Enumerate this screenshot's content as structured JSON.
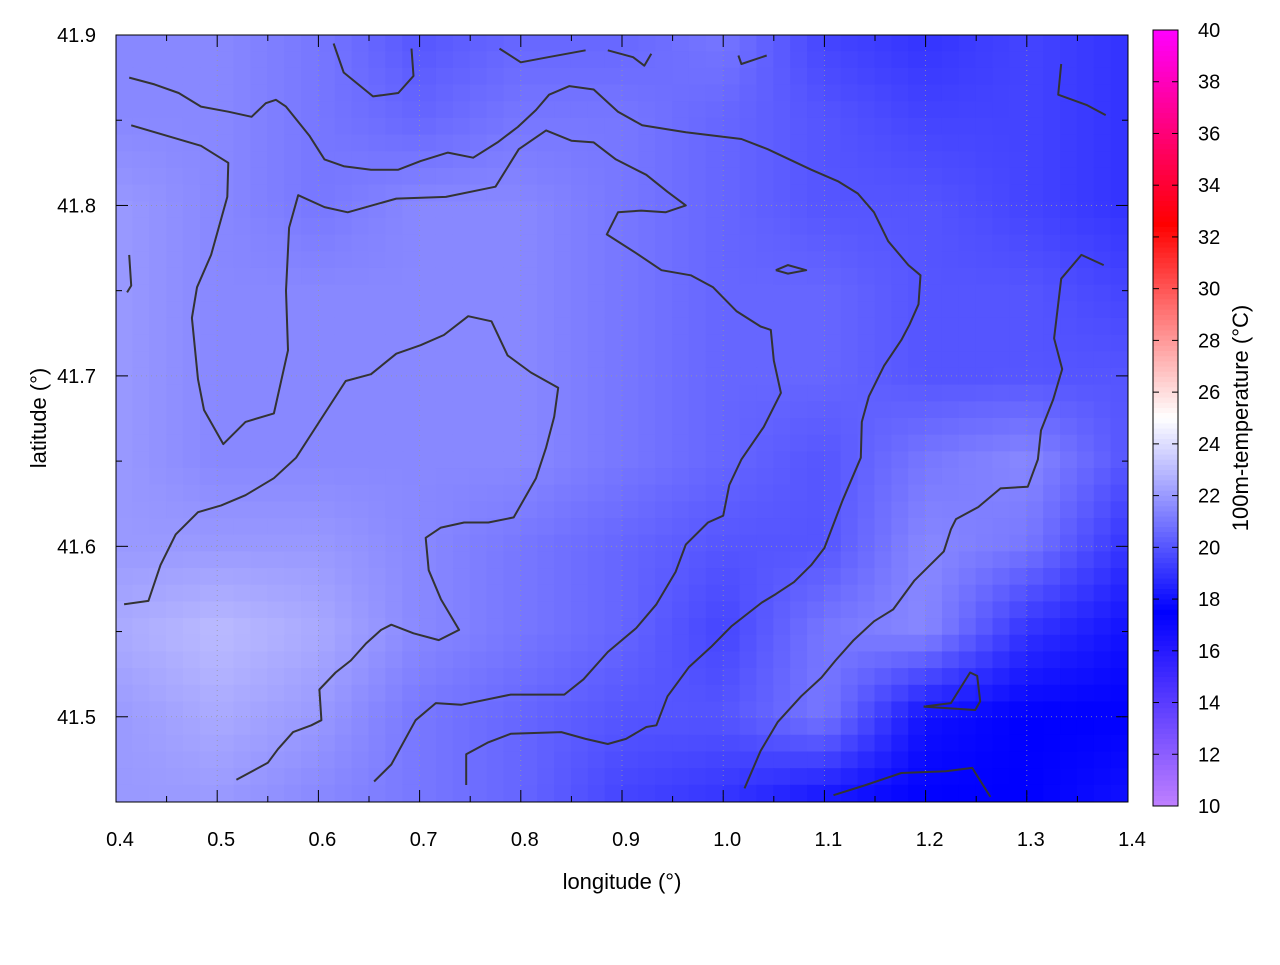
{
  "chart_data": {
    "type": "heatmap",
    "xlabel": "longitude (°)",
    "ylabel": "latitude (°)",
    "xlim": [
      0.4,
      1.4
    ],
    "ylim": [
      41.45,
      41.9
    ],
    "xticks": [
      "0.4",
      "0.5",
      "0.6",
      "0.7",
      "0.8",
      "0.9",
      "1.0",
      "1.1",
      "1.2",
      "1.3",
      "1.4"
    ],
    "yticks": [
      "41.5",
      "41.6",
      "41.7",
      "41.8",
      "41.9"
    ],
    "grid": true,
    "colorbar": {
      "label": "100m-temperature (°C)",
      "range": [
        10,
        40
      ],
      "ticks": [
        "10",
        "12",
        "14",
        "16",
        "18",
        "20",
        "22",
        "24",
        "26",
        "28",
        "30",
        "32",
        "34",
        "36",
        "38",
        "40"
      ],
      "colormap": [
        {
          "value": 10,
          "color": "#c080ff"
        },
        {
          "value": 17.5,
          "color": "#0000ff"
        },
        {
          "value": 25,
          "color": "#ffffff"
        },
        {
          "value": 32.5,
          "color": "#ff0000"
        },
        {
          "value": 40,
          "color": "#ff00ff"
        }
      ]
    },
    "grid_lon": [
      0.4,
      0.5,
      0.6,
      0.7,
      0.8,
      0.9,
      1.0,
      1.1,
      1.2,
      1.3,
      1.4
    ],
    "grid_lat": [
      41.9,
      41.85,
      41.8,
      41.75,
      41.7,
      41.65,
      41.6,
      41.55,
      41.5,
      41.45
    ],
    "temperature": [
      [
        21.5,
        21.5,
        21,
        20,
        20.5,
        20.5,
        21,
        19.5,
        19,
        19.5,
        19
      ],
      [
        21.5,
        21.5,
        21,
        20.5,
        21,
        21,
        20.5,
        20,
        19.5,
        19.5,
        19
      ],
      [
        22,
        21.5,
        21,
        21.5,
        21.5,
        21,
        20.5,
        20,
        20,
        19.5,
        19
      ],
      [
        22,
        21.5,
        21.5,
        21.5,
        21.5,
        21,
        20.5,
        20.5,
        20,
        20,
        19.5
      ],
      [
        22,
        21.5,
        21.5,
        21.5,
        21.5,
        21,
        20.5,
        20.5,
        20,
        20,
        20
      ],
      [
        22,
        21.5,
        21.5,
        21.5,
        21.5,
        21,
        20.5,
        20,
        21,
        21.5,
        20
      ],
      [
        22,
        22,
        22,
        21.5,
        21,
        20.5,
        20,
        20,
        21.5,
        21,
        19
      ],
      [
        22.5,
        23,
        22.5,
        21.5,
        21,
        20.5,
        19.5,
        21,
        21.5,
        19,
        18
      ],
      [
        22,
        22.5,
        22,
        21,
        20.5,
        20,
        20,
        21,
        18,
        17.5,
        17.5
      ],
      [
        22,
        22,
        21.5,
        21,
        20.5,
        19.5,
        19,
        18,
        17.5,
        17.5,
        18
      ]
    ],
    "contour_color": "#333333",
    "contours": [
      [
        [
          0.415,
          41.847
        ],
        [
          0.484,
          41.835
        ],
        [
          0.511,
          41.825
        ],
        [
          0.51,
          41.805
        ],
        [
          0.494,
          41.771
        ],
        [
          0.48,
          41.752
        ],
        [
          0.475,
          41.734
        ],
        [
          0.481,
          41.698
        ],
        [
          0.487,
          41.68
        ],
        [
          0.506,
          41.66
        ],
        [
          0.528,
          41.673
        ],
        [
          0.556,
          41.678
        ],
        [
          0.57,
          41.715
        ],
        [
          0.568,
          41.75
        ],
        [
          0.571,
          41.787
        ],
        [
          0.58,
          41.806
        ],
        [
          0.606,
          41.799
        ],
        [
          0.629,
          41.796
        ],
        [
          0.677,
          41.804
        ],
        [
          0.726,
          41.805
        ],
        [
          0.775,
          41.811
        ],
        [
          0.798,
          41.833
        ],
        [
          0.825,
          41.844
        ],
        [
          0.85,
          41.838
        ],
        [
          0.872,
          41.837
        ],
        [
          0.894,
          41.827
        ],
        [
          0.924,
          41.818
        ],
        [
          0.945,
          41.808
        ],
        [
          0.963,
          41.8
        ],
        [
          0.943,
          41.796
        ],
        [
          0.919,
          41.797
        ],
        [
          0.896,
          41.796
        ],
        [
          0.885,
          41.783
        ],
        [
          0.914,
          41.772
        ],
        [
          0.939,
          41.762
        ],
        [
          0.968,
          41.759
        ],
        [
          0.99,
          41.752
        ],
        [
          1.013,
          41.738
        ],
        [
          1.037,
          41.729
        ],
        [
          1.047,
          41.727
        ],
        [
          1.05,
          41.709
        ],
        [
          1.057,
          41.69
        ],
        [
          1.04,
          41.67
        ],
        [
          1.018,
          41.651
        ],
        [
          1.006,
          41.636
        ],
        [
          1.0,
          41.618
        ],
        [
          0.985,
          41.614
        ],
        [
          0.963,
          41.601
        ],
        [
          0.953,
          41.585
        ],
        [
          0.934,
          41.566
        ],
        [
          0.914,
          41.552
        ],
        [
          0.886,
          41.538
        ],
        [
          0.862,
          41.522
        ],
        [
          0.843,
          41.513
        ],
        [
          0.79,
          41.513
        ],
        [
          0.741,
          41.507
        ],
        [
          0.716,
          41.508
        ],
        [
          0.696,
          41.498
        ],
        [
          0.672,
          41.472
        ],
        [
          0.655,
          41.462
        ]
      ],
      [
        [
          0.408,
          41.566
        ],
        [
          0.432,
          41.568
        ],
        [
          0.444,
          41.589
        ],
        [
          0.459,
          41.607
        ],
        [
          0.481,
          41.62
        ],
        [
          0.504,
          41.624
        ],
        [
          0.528,
          41.63
        ],
        [
          0.556,
          41.64
        ],
        [
          0.578,
          41.652
        ],
        [
          0.603,
          41.675
        ],
        [
          0.627,
          41.697
        ],
        [
          0.652,
          41.701
        ],
        [
          0.677,
          41.713
        ],
        [
          0.701,
          41.718
        ],
        [
          0.724,
          41.724
        ],
        [
          0.748,
          41.735
        ],
        [
          0.771,
          41.732
        ],
        [
          0.787,
          41.712
        ],
        [
          0.81,
          41.702
        ],
        [
          0.837,
          41.693
        ],
        [
          0.833,
          41.676
        ],
        [
          0.825,
          41.658
        ],
        [
          0.815,
          41.64
        ],
        [
          0.793,
          41.617
        ],
        [
          0.768,
          41.614
        ],
        [
          0.744,
          41.614
        ],
        [
          0.721,
          41.611
        ],
        [
          0.706,
          41.605
        ],
        [
          0.709,
          41.586
        ],
        [
          0.721,
          41.569
        ],
        [
          0.739,
          41.551
        ],
        [
          0.719,
          41.545
        ],
        [
          0.694,
          41.549
        ],
        [
          0.672,
          41.554
        ],
        [
          0.662,
          41.551
        ],
        [
          0.647,
          41.543
        ],
        [
          0.632,
          41.533
        ],
        [
          0.617,
          41.526
        ],
        [
          0.601,
          41.516
        ],
        [
          0.603,
          41.498
        ],
        [
          0.593,
          41.495
        ],
        [
          0.575,
          41.491
        ],
        [
          0.56,
          41.481
        ],
        [
          0.55,
          41.473
        ],
        [
          0.519,
          41.463
        ]
      ],
      [
        [
          0.413,
          41.875
        ],
        [
          0.438,
          41.871
        ],
        [
          0.462,
          41.866
        ],
        [
          0.484,
          41.858
        ],
        [
          0.511,
          41.855
        ],
        [
          0.534,
          41.852
        ],
        [
          0.548,
          41.86
        ],
        [
          0.558,
          41.862
        ],
        [
          0.568,
          41.858
        ],
        [
          0.591,
          41.841
        ],
        [
          0.606,
          41.827
        ],
        [
          0.625,
          41.823
        ],
        [
          0.652,
          41.821
        ],
        [
          0.679,
          41.821
        ],
        [
          0.701,
          41.826
        ],
        [
          0.728,
          41.831
        ],
        [
          0.753,
          41.828
        ],
        [
          0.777,
          41.837
        ],
        [
          0.797,
          41.846
        ],
        [
          0.815,
          41.856
        ],
        [
          0.828,
          41.865
        ],
        [
          0.848,
          41.87
        ],
        [
          0.872,
          41.868
        ],
        [
          0.896,
          41.855
        ],
        [
          0.92,
          41.847
        ],
        [
          0.963,
          41.843
        ],
        [
          1.018,
          41.839
        ],
        [
          1.044,
          41.833
        ],
        [
          1.087,
          41.821
        ],
        [
          1.114,
          41.814
        ],
        [
          1.133,
          41.807
        ],
        [
          1.149,
          41.796
        ],
        [
          1.163,
          41.779
        ],
        [
          1.183,
          41.765
        ],
        [
          1.195,
          41.759
        ],
        [
          1.193,
          41.742
        ],
        [
          1.184,
          41.73
        ],
        [
          1.176,
          41.721
        ],
        [
          1.159,
          41.706
        ],
        [
          1.144,
          41.688
        ],
        [
          1.137,
          41.673
        ],
        [
          1.136,
          41.652
        ],
        [
          1.118,
          41.627
        ],
        [
          1.1,
          41.599
        ],
        [
          1.087,
          41.589
        ],
        [
          1.07,
          41.579
        ],
        [
          1.052,
          41.572
        ],
        [
          1.038,
          41.567
        ],
        [
          1.008,
          41.553
        ],
        [
          0.988,
          41.541
        ],
        [
          0.966,
          41.529
        ],
        [
          0.945,
          41.512
        ],
        [
          0.934,
          41.495
        ],
        [
          0.924,
          41.494
        ],
        [
          0.904,
          41.487
        ],
        [
          0.886,
          41.484
        ],
        [
          0.864,
          41.487
        ],
        [
          0.84,
          41.491
        ],
        [
          0.79,
          41.49
        ],
        [
          0.768,
          41.485
        ],
        [
          0.746,
          41.478
        ],
        [
          0.746,
          41.46
        ]
      ],
      [
        [
          1.376,
          41.765
        ],
        [
          1.354,
          41.771
        ],
        [
          1.334,
          41.757
        ],
        [
          1.327,
          41.722
        ],
        [
          1.335,
          41.704
        ],
        [
          1.326,
          41.686
        ],
        [
          1.314,
          41.668
        ],
        [
          1.311,
          41.651
        ],
        [
          1.301,
          41.635
        ],
        [
          1.274,
          41.634
        ],
        [
          1.252,
          41.623
        ],
        [
          1.23,
          41.616
        ],
        [
          1.225,
          41.61
        ],
        [
          1.218,
          41.597
        ],
        [
          1.189,
          41.58
        ],
        [
          1.168,
          41.563
        ],
        [
          1.149,
          41.556
        ],
        [
          1.129,
          41.545
        ],
        [
          1.111,
          41.533
        ],
        [
          1.097,
          41.523
        ],
        [
          1.077,
          41.512
        ],
        [
          1.054,
          41.497
        ],
        [
          1.037,
          41.48
        ],
        [
          1.021,
          41.458
        ]
      ],
      [
        [
          0.615,
          41.895
        ],
        [
          0.625,
          41.878
        ],
        [
          0.654,
          41.864
        ],
        [
          0.679,
          41.866
        ],
        [
          0.694,
          41.876
        ],
        [
          0.692,
          41.892
        ]
      ],
      [
        [
          0.779,
          41.892
        ],
        [
          0.8,
          41.884
        ],
        [
          0.827,
          41.887
        ],
        [
          0.864,
          41.891
        ]
      ],
      [
        [
          0.886,
          41.891
        ],
        [
          0.911,
          41.887
        ],
        [
          0.922,
          41.882
        ],
        [
          0.929,
          41.889
        ]
      ],
      [
        [
          1.015,
          41.888
        ],
        [
          1.018,
          41.883
        ],
        [
          1.043,
          41.888
        ]
      ],
      [
        [
          1.334,
          41.883
        ],
        [
          1.331,
          41.865
        ],
        [
          1.359,
          41.859
        ],
        [
          1.378,
          41.853
        ]
      ],
      [
        [
          0.413,
          41.771
        ],
        [
          0.415,
          41.753
        ],
        [
          0.411,
          41.749
        ]
      ],
      [
        [
          1.052,
          41.762
        ],
        [
          1.064,
          41.765
        ],
        [
          1.082,
          41.762
        ],
        [
          1.064,
          41.76
        ],
        [
          1.052,
          41.762
        ]
      ],
      [
        [
          1.198,
          41.506
        ],
        [
          1.225,
          41.508
        ],
        [
          1.244,
          41.526
        ],
        [
          1.251,
          41.524
        ],
        [
          1.254,
          41.509
        ],
        [
          1.249,
          41.504
        ],
        [
          1.198,
          41.506
        ]
      ],
      [
        [
          1.109,
          41.454
        ],
        [
          1.141,
          41.46
        ],
        [
          1.176,
          41.467
        ],
        [
          1.22,
          41.468
        ],
        [
          1.246,
          41.47
        ],
        [
          1.264,
          41.453
        ]
      ]
    ]
  }
}
